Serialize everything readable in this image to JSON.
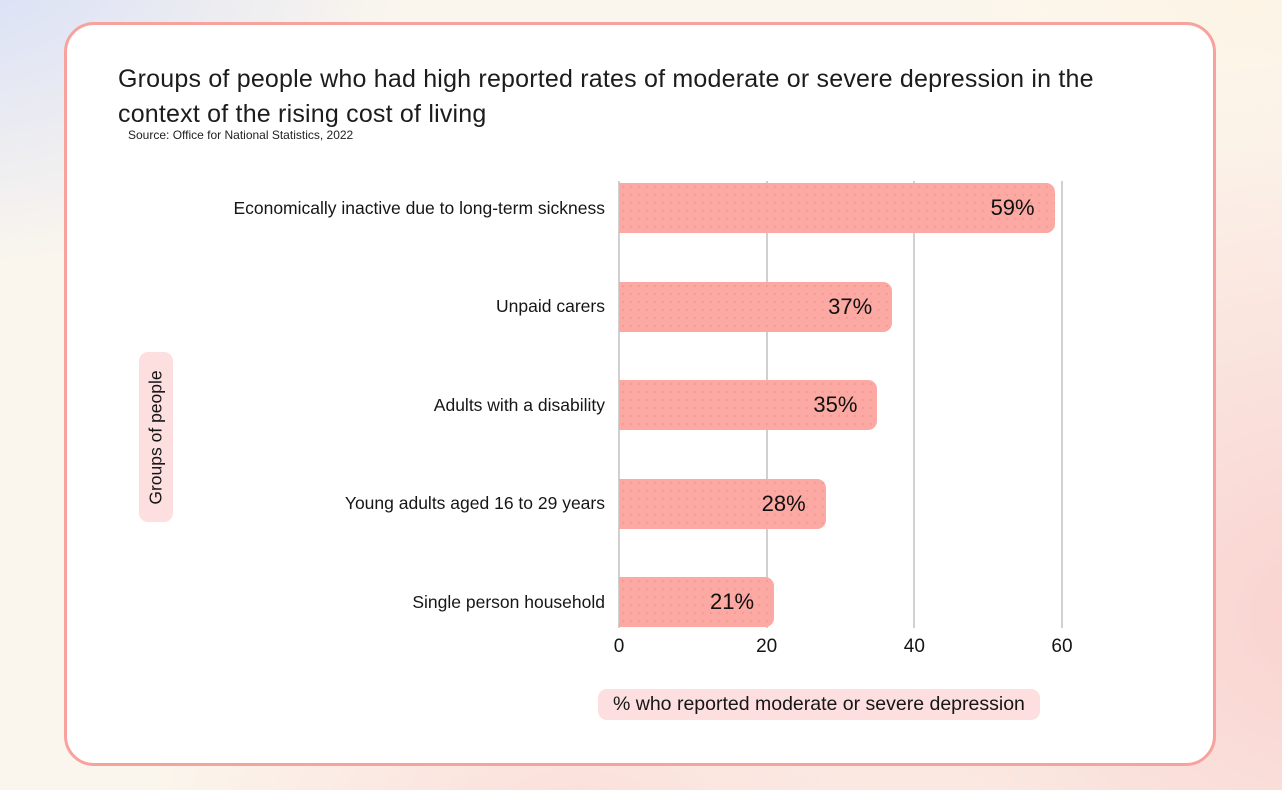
{
  "title": "Groups of people who had high reported rates of moderate or severe depression in the context of the rising cost of living",
  "source": "Source: Office for National Statistics, 2022",
  "chart_data": {
    "type": "bar",
    "orientation": "horizontal",
    "title": "Groups of people who had high reported rates of moderate or severe depression in the context of the rising cost of living",
    "subtitle": "Source: Office for National Statistics, 2022",
    "categories": [
      "Economically inactive due to long-term sickness",
      "Unpaid carers",
      "Adults with a disability",
      "Young adults aged 16 to 29 years",
      "Single person household"
    ],
    "values": [
      59,
      37,
      35,
      28,
      21
    ],
    "value_labels": [
      "59%",
      "37%",
      "35%",
      "28%",
      "21%"
    ],
    "xlabel": "% who reported moderate or severe depression",
    "ylabel": "Groups of people",
    "xlim": [
      0,
      60
    ],
    "xticks": [
      0,
      20,
      40,
      60
    ],
    "grid": "vertical gridlines on",
    "legend": "none",
    "colors": {
      "bar": "#fba9a2",
      "label_chip_bg": "#fcdfde",
      "gridline": "#d0d0d0",
      "card_border": "#f8a29e",
      "card_bg": "#ffffff",
      "text": "#1c1c1c"
    }
  }
}
